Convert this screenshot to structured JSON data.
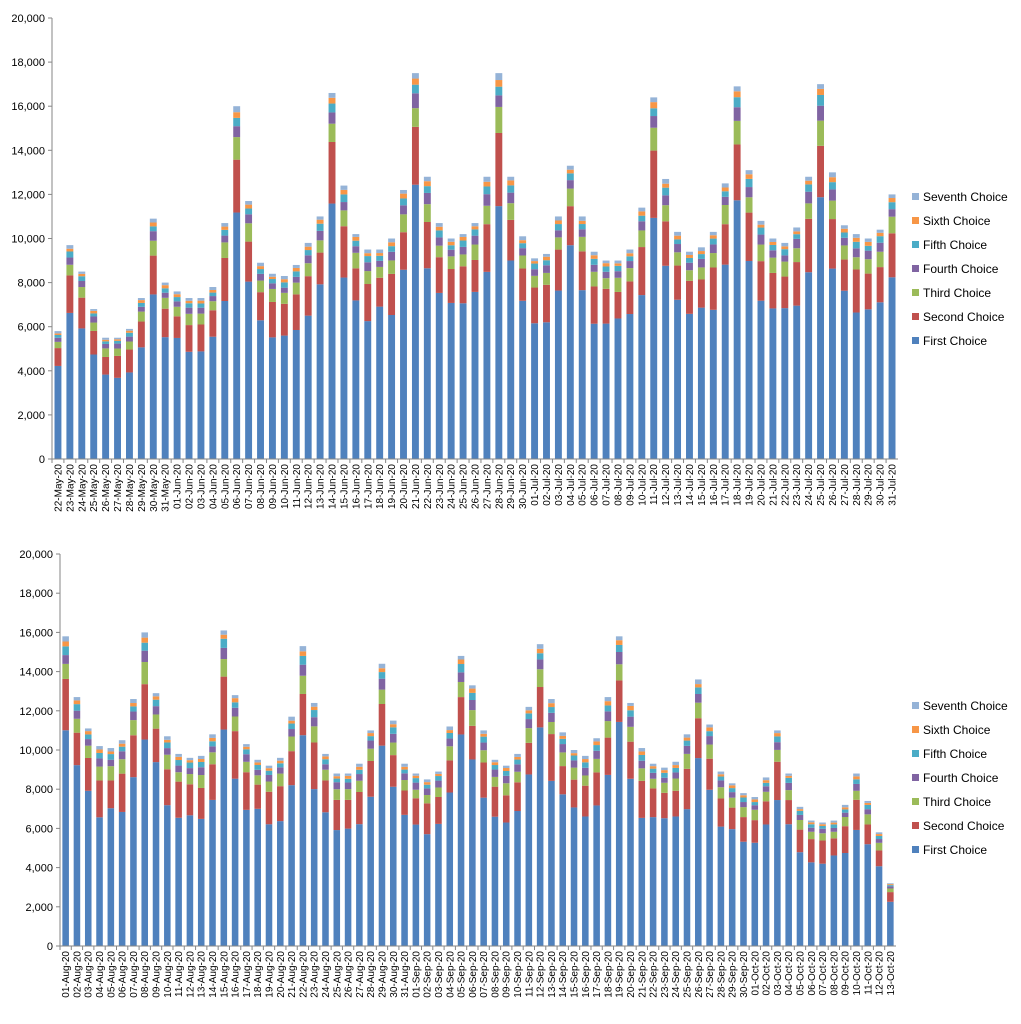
{
  "chart_data": [
    {
      "type": "bar",
      "stacked": true,
      "title": "",
      "xlabel": "",
      "ylabel": "",
      "ylim": [
        0,
        20000
      ],
      "yticks": [
        "0",
        "2,000",
        "4,000",
        "6,000",
        "8,000",
        "10,000",
        "12,000",
        "14,000",
        "16,000",
        "18,000",
        "20,000"
      ],
      "grid": false,
      "legend_position": "right",
      "categories": [
        "22-May-20",
        "23-May-20",
        "24-May-20",
        "25-May-20",
        "26-May-20",
        "27-May-20",
        "28-May-20",
        "29-May-20",
        "30-May-20",
        "31-May-20",
        "01-Jun-20",
        "02-Jun-20",
        "03-Jun-20",
        "04-Jun-20",
        "05-Jun-20",
        "06-Jun-20",
        "07-Jun-20",
        "08-Jun-20",
        "09-Jun-20",
        "10-Jun-20",
        "11-Jun-20",
        "12-Jun-20",
        "13-Jun-20",
        "14-Jun-20",
        "15-Jun-20",
        "16-Jun-20",
        "17-Jun-20",
        "18-Jun-20",
        "19-Jun-20",
        "20-Jun-20",
        "21-Jun-20",
        "22-Jun-20",
        "23-Jun-20",
        "24-Jun-20",
        "25-Jun-20",
        "26-Jun-20",
        "27-Jun-20",
        "28-Jun-20",
        "29-Jun-20",
        "30-Jun-20",
        "01-Jul-20",
        "02-Jul-20",
        "03-Jul-20",
        "04-Jul-20",
        "05-Jul-20",
        "06-Jul-20",
        "07-Jul-20",
        "08-Jul-20",
        "09-Jul-20",
        "10-Jul-20",
        "11-Jul-20",
        "12-Jul-20",
        "13-Jul-20",
        "14-Jul-20",
        "15-Jul-20",
        "16-Jul-20",
        "17-Jul-20",
        "18-Jul-20",
        "19-Jul-20",
        "20-Jul-20",
        "21-Jul-20",
        "22-Jul-20",
        "23-Jul-20",
        "24-Jul-20",
        "25-Jul-20",
        "26-Jul-20",
        "27-Jul-20",
        "28-Jul-20",
        "29-Jul-20",
        "30-Jul-20",
        "31-Jul-20"
      ],
      "totals": [
        5800,
        9700,
        8500,
        6800,
        5500,
        5500,
        5900,
        7300,
        10900,
        8000,
        7600,
        7300,
        7300,
        7800,
        10700,
        16000,
        11700,
        8900,
        8400,
        8300,
        8800,
        9800,
        11000,
        16600,
        12400,
        10200,
        9500,
        9500,
        10000,
        12200,
        17500,
        12800,
        10700,
        10000,
        10200,
        10700,
        12800,
        17500,
        12800,
        10100,
        9100,
        9300,
        11000,
        13300,
        11000,
        9400,
        9000,
        9000,
        9500,
        11400,
        16400,
        12700,
        10300,
        9400,
        9600,
        10300,
        12500,
        16900,
        13100,
        10800,
        10000,
        9800,
        10500,
        12800,
        17000,
        13000,
        10600,
        10200,
        10000,
        10400,
        12000
      ],
      "series": [
        {
          "name": "First Choice",
          "color": "#4f81bd",
          "share": 0.69
        },
        {
          "name": "Second Choice",
          "color": "#c0504d",
          "share": 0.16
        },
        {
          "name": "Third Choice",
          "color": "#9bbb59",
          "share": 0.06
        },
        {
          "name": "Fourth Choice",
          "color": "#8064a2",
          "share": 0.035
        },
        {
          "name": "Fifth Choice",
          "color": "#4bacc6",
          "share": 0.025
        },
        {
          "name": "Sixth Choice",
          "color": "#f79646",
          "share": 0.015
        },
        {
          "name": "Seventh Choice",
          "color": "#95b3d7",
          "share": 0.015
        }
      ]
    },
    {
      "type": "bar",
      "stacked": true,
      "title": "",
      "xlabel": "",
      "ylabel": "",
      "ylim": [
        0,
        20000
      ],
      "yticks": [
        "0",
        "2,000",
        "4,000",
        "6,000",
        "8,000",
        "10,000",
        "12,000",
        "14,000",
        "16,000",
        "18,000",
        "20,000"
      ],
      "grid": false,
      "legend_position": "right",
      "categories": [
        "01-Aug-20",
        "02-Aug-20",
        "03-Aug-20",
        "04-Aug-20",
        "05-Aug-20",
        "06-Aug-20",
        "07-Aug-20",
        "08-Aug-20",
        "09-Aug-20",
        "10-Aug-20",
        "11-Aug-20",
        "12-Aug-20",
        "13-Aug-20",
        "14-Aug-20",
        "15-Aug-20",
        "16-Aug-20",
        "17-Aug-20",
        "18-Aug-20",
        "19-Aug-20",
        "20-Aug-20",
        "21-Aug-20",
        "22-Aug-20",
        "23-Aug-20",
        "24-Aug-20",
        "25-Aug-20",
        "26-Aug-20",
        "27-Aug-20",
        "28-Aug-20",
        "29-Aug-20",
        "30-Aug-20",
        "31-Aug-20",
        "01-Sep-20",
        "02-Sep-20",
        "03-Sep-20",
        "04-Sep-20",
        "05-Sep-20",
        "06-Sep-20",
        "07-Sep-20",
        "08-Sep-20",
        "09-Sep-20",
        "10-Sep-20",
        "11-Sep-20",
        "12-Sep-20",
        "13-Sep-20",
        "14-Sep-20",
        "15-Sep-20",
        "16-Sep-20",
        "17-Sep-20",
        "18-Sep-20",
        "19-Sep-20",
        "20-Sep-20",
        "21-Sep-20",
        "22-Sep-20",
        "23-Sep-20",
        "24-Sep-20",
        "25-Sep-20",
        "26-Sep-20",
        "27-Sep-20",
        "28-Sep-20",
        "29-Sep-20",
        "30-Sep-20",
        "01-Oct-20",
        "02-Oct-20",
        "03-Oct-20",
        "04-Oct-20",
        "05-Oct-20",
        "06-Oct-20",
        "07-Oct-20",
        "08-Oct-20",
        "09-Oct-20",
        "10-Oct-20",
        "11-Oct-20",
        "12-Oct-20",
        "13-Oct-20"
      ],
      "totals": [
        15800,
        12700,
        11100,
        10200,
        10100,
        10500,
        12600,
        16000,
        12900,
        10700,
        9800,
        9600,
        9700,
        10800,
        16100,
        12800,
        10300,
        9500,
        9200,
        9600,
        11700,
        15300,
        12400,
        9800,
        8800,
        8800,
        9300,
        11000,
        14400,
        11500,
        9300,
        8800,
        8500,
        8900,
        11200,
        14800,
        13300,
        11000,
        9500,
        9200,
        9800,
        12200,
        15400,
        12600,
        10900,
        10000,
        9700,
        10600,
        12700,
        15800,
        12400,
        10100,
        9300,
        9100,
        9400,
        10800,
        13600,
        11300,
        8900,
        8300,
        7800,
        7600,
        8600,
        11000,
        8800,
        7100,
        6400,
        6300,
        6400,
        7200,
        8800,
        7400,
        5800,
        3200
      ],
      "series": [
        {
          "name": "First Choice",
          "color": "#4f81bd",
          "share": 0.69
        },
        {
          "name": "Second Choice",
          "color": "#c0504d",
          "share": 0.16
        },
        {
          "name": "Third Choice",
          "color": "#9bbb59",
          "share": 0.06
        },
        {
          "name": "Fourth Choice",
          "color": "#8064a2",
          "share": 0.035
        },
        {
          "name": "Fifth Choice",
          "color": "#4bacc6",
          "share": 0.025
        },
        {
          "name": "Sixth Choice",
          "color": "#f79646",
          "share": 0.015
        },
        {
          "name": "Seventh Choice",
          "color": "#95b3d7",
          "share": 0.015
        }
      ]
    }
  ]
}
